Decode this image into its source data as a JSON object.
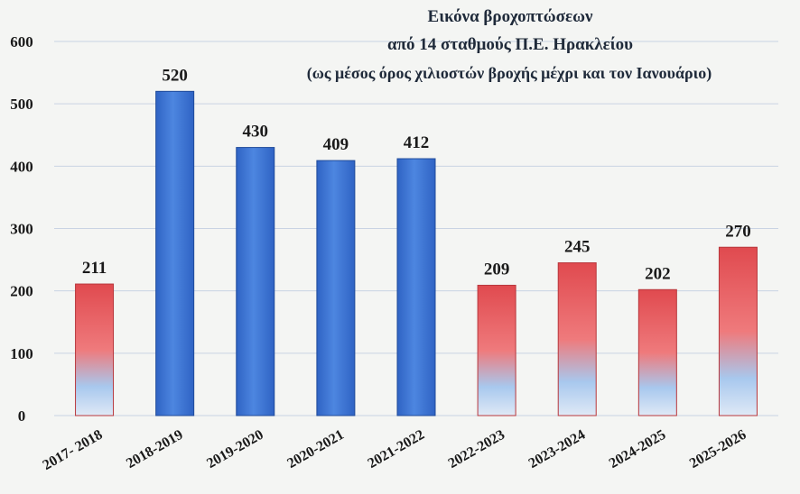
{
  "chart_data": {
    "type": "bar",
    "title_lines": [
      "Εικόνα βροχοπτώσεων",
      "από 14 σταθμούς Π.Ε. Ηρακλείου",
      "(ως μέσος όρος χιλιοστών βροχής μέχρι και τον Ιανουάριο)"
    ],
    "categories": [
      "2017- 2018",
      "2018-2019",
      "2019-2020",
      "2020-2021",
      "2021-2022",
      "2022-2023",
      "2023-2024",
      "2024-2025",
      "2025-2026"
    ],
    "values": [
      211,
      520,
      430,
      409,
      412,
      209,
      245,
      202,
      270
    ],
    "data_labels": [
      "211",
      "520",
      "430",
      "409",
      "412",
      "209",
      "245",
      "202",
      "270"
    ],
    "bar_styles": [
      "red",
      "blue",
      "blue",
      "blue",
      "blue",
      "red",
      "red",
      "red",
      "red"
    ],
    "ylim": [
      0,
      600
    ],
    "yticks": [
      0,
      100,
      200,
      300,
      400,
      500,
      600
    ],
    "grid": true,
    "colors": {
      "blue": "#2f63c4",
      "blue_light": "#4d86e0",
      "red": "#e04a4f",
      "red_light": "#ef7a7c",
      "fade": "#a8c8ee",
      "grid": "#c9d3e3"
    }
  }
}
